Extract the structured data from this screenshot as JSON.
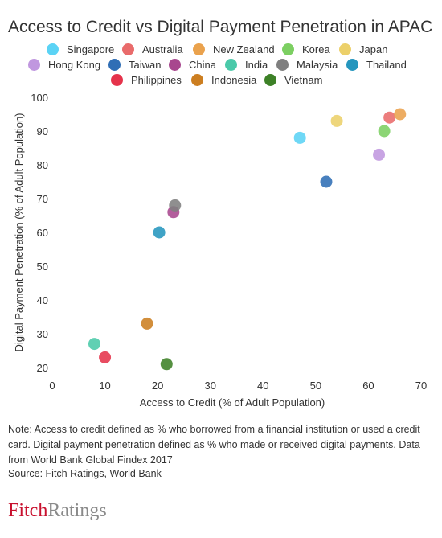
{
  "chart_data": {
    "type": "scatter",
    "title": "Access to Credit vs Digital Payment Penetration in APAC",
    "xlabel": "Access to Credit (% of Adult Population)",
    "ylabel": "Digital Payment Penetration (% of Adult Population)",
    "xlim": [
      0,
      70
    ],
    "ylim": [
      20,
      100
    ],
    "x_ticks": [
      "0",
      "10",
      "20",
      "30",
      "40",
      "50",
      "60",
      "70"
    ],
    "y_ticks": [
      "20",
      "30",
      "40",
      "50",
      "60",
      "70",
      "80",
      "90",
      "100"
    ],
    "grid": false,
    "legend_position": "top",
    "series": [
      {
        "name": "Singapore",
        "color": "#5bd3f5",
        "x": 47,
        "y": 88
      },
      {
        "name": "Australia",
        "color": "#e96b6b",
        "x": 64,
        "y": 94
      },
      {
        "name": "New Zealand",
        "color": "#eaa24d",
        "x": 66,
        "y": 95
      },
      {
        "name": "Korea",
        "color": "#7ccf62",
        "x": 63,
        "y": 90
      },
      {
        "name": "Japan",
        "color": "#ecd06a",
        "x": 54,
        "y": 93
      },
      {
        "name": "Hong Kong",
        "color": "#c097df",
        "x": 62,
        "y": 83
      },
      {
        "name": "Taiwan",
        "color": "#2f6eb5",
        "x": 52,
        "y": 75
      },
      {
        "name": "China",
        "color": "#a8478e",
        "x": 23,
        "y": 66
      },
      {
        "name": "India",
        "color": "#4ac9a9",
        "x": 8,
        "y": 27
      },
      {
        "name": "Malaysia",
        "color": "#7f7f7f",
        "x": 23.3,
        "y": 68
      },
      {
        "name": "Thailand",
        "color": "#2596be",
        "x": 20.3,
        "y": 60
      },
      {
        "name": "Philippines",
        "color": "#e5334b",
        "x": 10,
        "y": 23
      },
      {
        "name": "Indonesia",
        "color": "#cc7e20",
        "x": 18,
        "y": 33
      },
      {
        "name": "Vietnam",
        "color": "#3d8127",
        "x": 21.7,
        "y": 21
      }
    ]
  },
  "legend_rows": [
    [
      "Singapore",
      "Australia",
      "New Zealand",
      "Korea",
      "Japan"
    ],
    [
      "Hong Kong",
      "Taiwan",
      "China",
      "India",
      "Malaysia",
      "Thailand"
    ],
    [
      "Philippines",
      "Indonesia",
      "Vietnam"
    ]
  ],
  "note": "Note: Access to credit defined as % who borrowed from a financial institution or used a credit card. Digital payment penetration defined as % who made or received digital payments. Data from World Bank Global Findex 2017",
  "source": "Source: Fitch Ratings, World Bank",
  "logo": {
    "first": "Fitch",
    "rest": "Ratings"
  }
}
